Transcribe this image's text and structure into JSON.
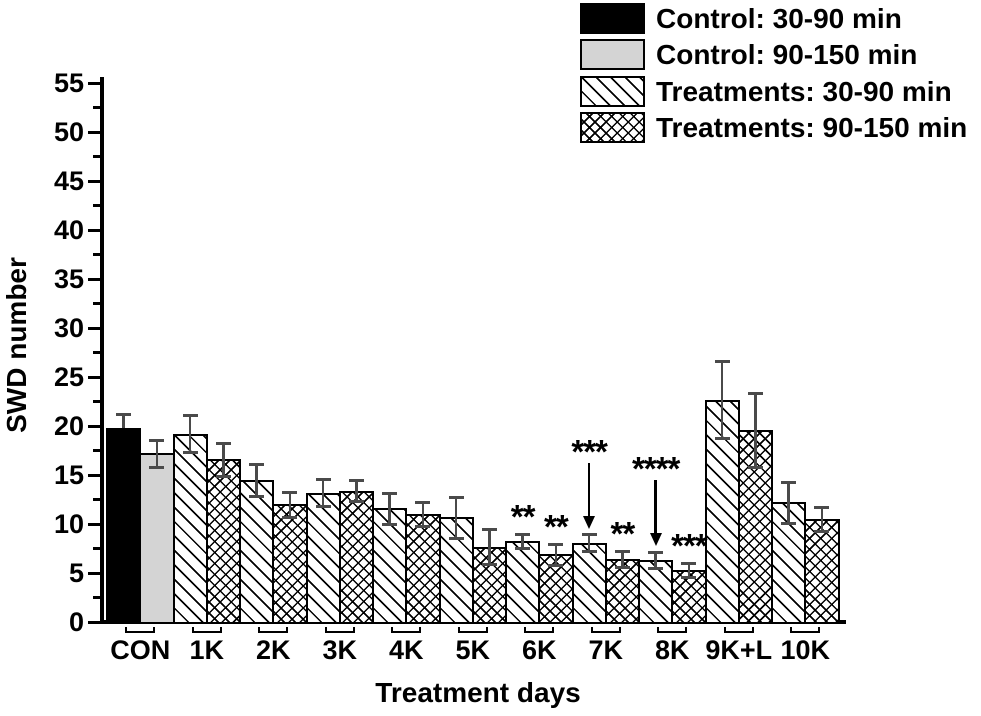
{
  "figure": {
    "background": "#ffffff",
    "colors": {
      "bar_outline": "#000000",
      "solid_black_fill": "#000000",
      "solid_gray_fill": "#d4d4d4",
      "error_bar": "#4a4a4a"
    }
  },
  "legend": {
    "items": [
      {
        "label": "Control: 30-90 min",
        "pattern": "solid-black"
      },
      {
        "label": "Control: 90-150 min",
        "pattern": "solid-gray"
      },
      {
        "label": "Treatments: 30-90 min",
        "pattern": "diagonal-hatch"
      },
      {
        "label": "Treatments: 90-150 min",
        "pattern": "crosshatch"
      }
    ]
  },
  "chart_data": {
    "type": "bar",
    "title": "",
    "xlabel": "Treatment days",
    "ylabel": "SWD number",
    "ylim": [
      0,
      55
    ],
    "ytick_major_step": 5,
    "ytick_minor_step": 2.5,
    "grid": false,
    "legend_position": "top-right",
    "categories": [
      "CON",
      "1K",
      "2K",
      "3K",
      "4K",
      "5K",
      "6K",
      "7K",
      "8K",
      "9K+L",
      "10K"
    ],
    "control_category": "CON",
    "series": [
      {
        "name": "30-90 min",
        "control_pattern": "solid-black",
        "treatment_pattern": "diagonal-hatch",
        "values": [
          19.8,
          19.2,
          14.5,
          13.2,
          11.6,
          10.7,
          8.3,
          8.1,
          6.3,
          22.7,
          12.2
        ],
        "errors": [
          1.4,
          1.9,
          1.6,
          1.4,
          1.6,
          2.1,
          0.7,
          0.9,
          0.8,
          3.9,
          2.1
        ]
      },
      {
        "name": "90-150 min",
        "control_pattern": "solid-gray",
        "treatment_pattern": "crosshatch",
        "values": [
          17.2,
          16.6,
          12.0,
          13.4,
          11.0,
          7.7,
          6.9,
          6.4,
          5.3,
          19.6,
          10.5
        ],
        "errors": [
          1.4,
          1.7,
          1.3,
          1.1,
          1.2,
          1.8,
          1.1,
          0.8,
          0.7,
          3.8,
          1.2
        ]
      }
    ],
    "annotations": [
      {
        "text": "**",
        "category": "6K",
        "series": 0,
        "arrow": false
      },
      {
        "text": "**",
        "category": "6K",
        "series": 1,
        "arrow": false
      },
      {
        "text": "***",
        "category": "7K",
        "series": 0,
        "arrow": true
      },
      {
        "text": "**",
        "category": "7K",
        "series": 1,
        "arrow": false
      },
      {
        "text": "****",
        "category": "8K",
        "series": 0,
        "arrow": true
      },
      {
        "text": "***",
        "category": "8K",
        "series": 1,
        "arrow": false
      }
    ]
  }
}
